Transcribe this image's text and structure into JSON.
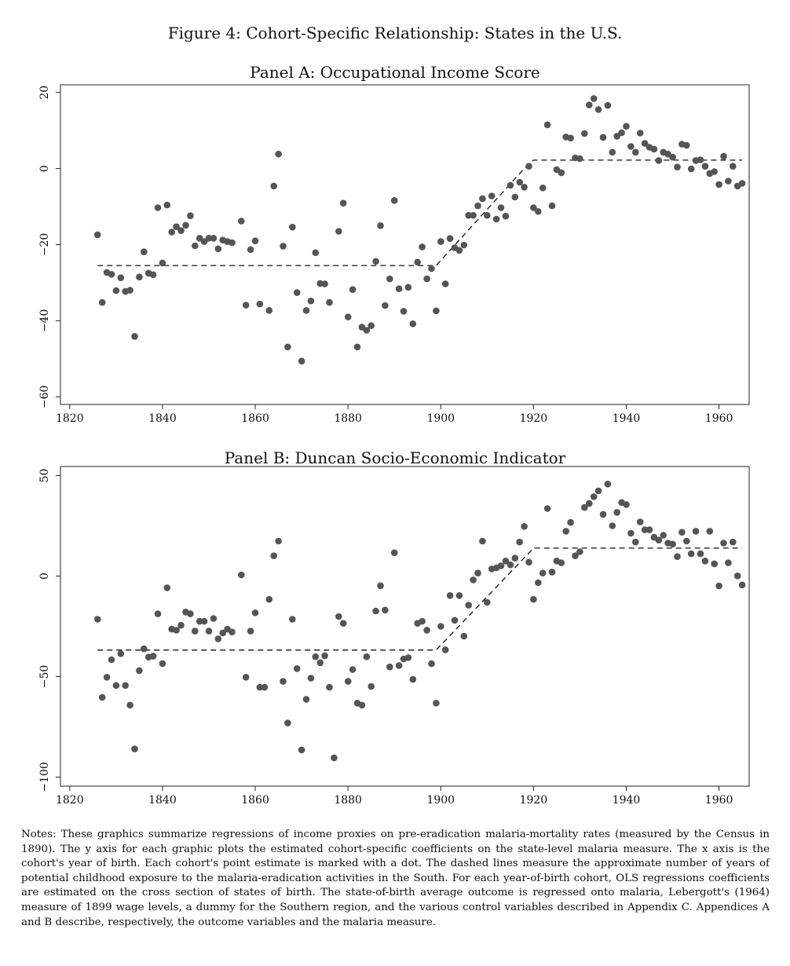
{
  "figure_title": "Figure 4: Cohort-Specific Relationship: States in the U.S.",
  "notes": "Notes: These graphics summarize regressions of income proxies on pre-eradication malaria-mortality rates (measured by the Census in 1890). The y axis for each graphic plots the estimated cohort-specific coefficients on the state-level malaria measure. The x axis is the cohort's year of birth. Each cohort's point estimate is marked with a dot. The dashed lines measure the approximate number of years of potential childhood exposure to the malaria-eradication activities in the South. For each year-of-birth cohort, OLS regressions coefficients are estimated on the cross section of states of birth. The state-of-birth average outcome is regressed onto malaria, Lebergott's (1964) measure of 1899 wage levels, a dummy for the Southern region, and the various control variables described in Appendix C. Appendices A and B describe, respectively, the outcome variables and the malaria measure.",
  "colors": {
    "points": "#555555",
    "lines": "#111111"
  },
  "chart_data": [
    {
      "type": "scatter",
      "title": "Panel A: Occupational Income Score",
      "xlabel": "",
      "ylabel": "",
      "xlim": [
        1818,
        1966.5
      ],
      "ylim": [
        -62,
        22
      ],
      "xticks": [
        1820,
        1840,
        1860,
        1880,
        1900,
        1920,
        1940,
        1960
      ],
      "yticks": [
        -60,
        -40,
        -20,
        0,
        20
      ],
      "grid": false,
      "x": [
        1826,
        1827,
        1828,
        1829,
        1830,
        1831,
        1832,
        1833,
        1834,
        1835,
        1836,
        1837,
        1838,
        1839,
        1840,
        1841,
        1842,
        1843,
        1844,
        1845,
        1846,
        1847,
        1848,
        1849,
        1850,
        1851,
        1852,
        1853,
        1854,
        1855,
        1857,
        1858,
        1859,
        1860,
        1861,
        1863,
        1864,
        1865,
        1866,
        1867,
        1868,
        1869,
        1870,
        1871,
        1872,
        1873,
        1874,
        1875,
        1876,
        1878,
        1879,
        1880,
        1881,
        1882,
        1883,
        1884,
        1885,
        1886,
        1887,
        1888,
        1889,
        1890,
        1891,
        1892,
        1893,
        1894,
        1895,
        1896,
        1897,
        1898,
        1899,
        1900,
        1901,
        1902,
        1903,
        1904,
        1905,
        1906,
        1907,
        1908,
        1909,
        1910,
        1911,
        1912,
        1913,
        1914,
        1915,
        1916,
        1917,
        1918,
        1919,
        1920,
        1921,
        1922,
        1923,
        1924,
        1925,
        1926,
        1927,
        1928,
        1929,
        1930,
        1931,
        1932,
        1933,
        1934,
        1935,
        1936,
        1937,
        1938,
        1939,
        1940,
        1941,
        1942,
        1943,
        1944,
        1945,
        1946,
        1947,
        1948,
        1949,
        1950,
        1951,
        1952,
        1953,
        1954,
        1955,
        1956,
        1957,
        1958,
        1959,
        1960,
        1961,
        1962,
        1963,
        1964,
        1965
      ],
      "y": [
        -17.4,
        -35.2,
        -27.3,
        -27.8,
        -32.1,
        -28.7,
        -32.3,
        -32.0,
        -44.1,
        -28.5,
        -21.9,
        -27.5,
        -27.9,
        -10.3,
        -24.8,
        -9.6,
        -16.7,
        -15.3,
        -16.3,
        -14.9,
        -12.4,
        -20.3,
        -18.3,
        -19.2,
        -18.3,
        -18.3,
        -21.1,
        -18.8,
        -19.2,
        -19.5,
        -13.8,
        -35.9,
        -21.3,
        -19.0,
        -35.6,
        -37.3,
        -4.6,
        3.8,
        -20.4,
        -46.9,
        -15.4,
        -32.6,
        -50.6,
        -37.3,
        -34.8,
        -22.1,
        -30.2,
        -30.3,
        -35.2,
        -16.5,
        -9.1,
        -39.0,
        -31.8,
        -46.9,
        -41.7,
        -42.5,
        -41.3,
        -24.4,
        -15.0,
        -36.0,
        -29.0,
        -8.4,
        -31.6,
        -37.5,
        -31.2,
        -40.8,
        -24.6,
        -20.6,
        -29.0,
        -26.3,
        -37.4,
        -19.2,
        -30.3,
        -18.4,
        -20.8,
        -21.5,
        -20.1,
        -12.3,
        -12.3,
        -9.8,
        -7.9,
        -12.3,
        -7.2,
        -13.3,
        -10.3,
        -12.5,
        -4.4,
        -7.5,
        -3.6,
        -4.9,
        0.6,
        -10.3,
        -11.3,
        -5.1,
        11.5,
        -9.8,
        -0.3,
        -1.1,
        8.3,
        8.0,
        2.8,
        2.6,
        9.2,
        16.7,
        18.4,
        15.5,
        8.2,
        16.6,
        4.3,
        8.5,
        9.4,
        11.1,
        5.8,
        4.3,
        9.3,
        6.6,
        5.6,
        5.1,
        2.1,
        4.3,
        3.8,
        3.0,
        0.4,
        6.4,
        6.1,
        -0.1,
        2.1,
        2.3,
        0.6,
        -1.3,
        -0.8,
        -4.2,
        3.2,
        -3.3,
        0.6,
        -4.6,
        -3.9
      ],
      "dashed_line": {
        "x": [
          1826,
          1899,
          1918,
          1920,
          1965
        ],
        "y": [
          -25.5,
          -25.5,
          0.0,
          2.2,
          2.2
        ]
      }
    },
    {
      "type": "scatter",
      "title": "Panel B: Duncan Socio-Economic Indicator",
      "xlabel": "",
      "ylabel": "",
      "xlim": [
        1818,
        1966.5
      ],
      "ylim": [
        -104.5,
        54.5
      ],
      "xticks": [
        1820,
        1840,
        1860,
        1880,
        1900,
        1920,
        1940,
        1960
      ],
      "yticks": [
        -100,
        -50,
        0,
        50
      ],
      "grid": false,
      "x": [
        1826,
        1827,
        1828,
        1829,
        1830,
        1831,
        1832,
        1833,
        1834,
        1835,
        1836,
        1837,
        1838,
        1839,
        1840,
        1841,
        1842,
        1843,
        1844,
        1845,
        1846,
        1847,
        1848,
        1849,
        1850,
        1851,
        1852,
        1853,
        1854,
        1855,
        1857,
        1858,
        1859,
        1860,
        1861,
        1862,
        1863,
        1864,
        1865,
        1866,
        1867,
        1868,
        1869,
        1870,
        1871,
        1872,
        1873,
        1874,
        1875,
        1876,
        1877,
        1878,
        1879,
        1880,
        1881,
        1882,
        1883,
        1884,
        1885,
        1886,
        1887,
        1888,
        1889,
        1890,
        1891,
        1892,
        1893,
        1894,
        1895,
        1896,
        1897,
        1898,
        1899,
        1900,
        1901,
        1902,
        1903,
        1904,
        1905,
        1906,
        1907,
        1908,
        1909,
        1910,
        1911,
        1912,
        1913,
        1914,
        1915,
        1916,
        1917,
        1918,
        1919,
        1920,
        1921,
        1922,
        1923,
        1924,
        1925,
        1926,
        1927,
        1928,
        1929,
        1930,
        1931,
        1932,
        1933,
        1934,
        1935,
        1936,
        1937,
        1938,
        1939,
        1940,
        1941,
        1942,
        1943,
        1944,
        1945,
        1946,
        1947,
        1948,
        1949,
        1950,
        1951,
        1952,
        1953,
        1954,
        1955,
        1956,
        1957,
        1958,
        1959,
        1960,
        1961,
        1962,
        1963,
        1964,
        1965
      ],
      "y": [
        -21.5,
        -60.3,
        -50.3,
        -41.6,
        -54.4,
        -38.6,
        -54.4,
        -64.2,
        -86.0,
        -47.0,
        -36.2,
        -40.3,
        -39.8,
        -18.8,
        -43.5,
        -5.8,
        -26.4,
        -26.9,
        -24.5,
        -17.9,
        -18.8,
        -27.4,
        -22.5,
        -22.5,
        -27.4,
        -21.1,
        -31.2,
        -28.3,
        -26.4,
        -27.8,
        0.6,
        -50.3,
        -27.4,
        -18.3,
        -55.3,
        -55.3,
        -11.6,
        10.1,
        17.4,
        -52.4,
        -73.1,
        -21.5,
        -46.0,
        -86.5,
        -61.3,
        -50.8,
        -40.1,
        -43.1,
        -39.6,
        -55.3,
        -90.4,
        -20.1,
        -23.5,
        -52.4,
        -46.5,
        -63.2,
        -64.2,
        -40.1,
        -54.9,
        -17.4,
        -4.8,
        -16.9,
        -45.2,
        11.6,
        -44.5,
        -41.2,
        -40.6,
        -51.4,
        -23.5,
        -22.5,
        -26.9,
        -43.6,
        -63.2,
        -25.0,
        -36.7,
        -9.7,
        -22.0,
        -9.7,
        -29.9,
        -14.5,
        -1.9,
        1.5,
        17.4,
        -13.1,
        3.5,
        4.1,
        5.1,
        7.5,
        5.6,
        8.9,
        16.9,
        24.7,
        6.9,
        -11.6,
        -3.3,
        1.5,
        33.6,
        2.0,
        7.5,
        6.6,
        22.3,
        26.7,
        10.1,
        12.1,
        34.1,
        36.1,
        39.5,
        42.4,
        30.7,
        45.8,
        25.0,
        31.7,
        36.6,
        35.6,
        21.3,
        16.9,
        26.9,
        23.0,
        23.0,
        19.3,
        17.9,
        20.3,
        16.4,
        15.9,
        9.7,
        21.8,
        17.4,
        11.1,
        22.3,
        11.1,
        7.5,
        22.3,
        6.1,
        -4.9,
        16.4,
        6.6,
        16.9,
        0.1,
        -4.4
      ],
      "dashed_line": {
        "x": [
          1826,
          1899,
          1920,
          1965
        ],
        "y": [
          -36.8,
          -36.8,
          13.9,
          13.9
        ]
      }
    }
  ]
}
